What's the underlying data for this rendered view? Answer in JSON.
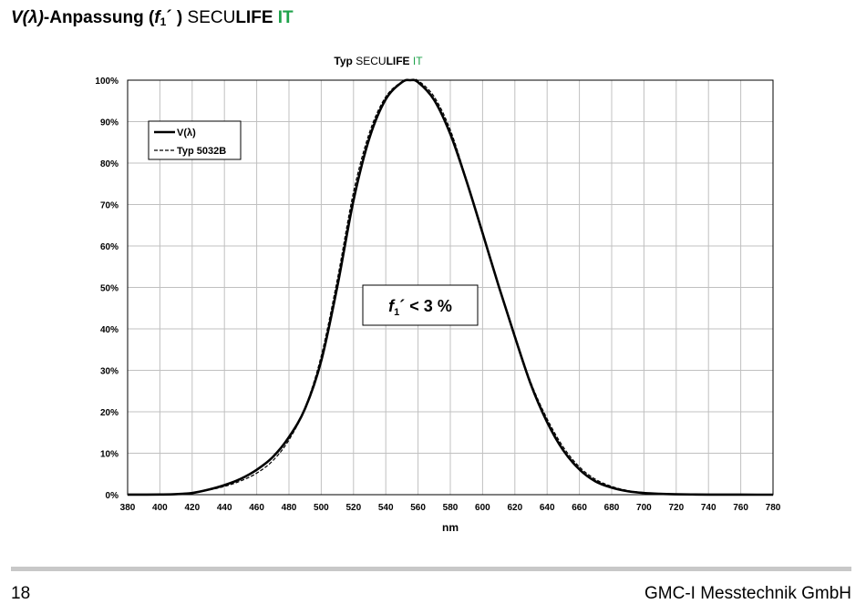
{
  "page": {
    "title_prefix": "V(λ)",
    "title_middle": "-Anpassung (",
    "title_f": "f",
    "title_sub": "1",
    "title_after": "´ )",
    "brand_secu": "SECU",
    "brand_life": "LIFE",
    "brand_it": "IT",
    "page_number": "18",
    "company": "GMC-I Messtechnik GmbH"
  },
  "colors": {
    "brand_green": "#1ea24a",
    "grid": "#c0c0c0",
    "axis": "#000000",
    "divider": "#c8c8c8"
  },
  "chart_data": {
    "type": "line",
    "title_typ": "Typ",
    "title_secu": "SECU",
    "title_life": "LIFE",
    "title_it": "IT",
    "xlabel": "nm",
    "ylabel": "",
    "xlim": [
      380,
      780
    ],
    "ylim": [
      0,
      100
    ],
    "x_ticks": [
      "380",
      "400",
      "420",
      "440",
      "460",
      "480",
      "500",
      "520",
      "540",
      "560",
      "580",
      "600",
      "620",
      "640",
      "660",
      "680",
      "700",
      "720",
      "740",
      "760",
      "780"
    ],
    "y_ticks": [
      "0%",
      "10%",
      "20%",
      "30%",
      "40%",
      "50%",
      "60%",
      "70%",
      "80%",
      "90%",
      "100%"
    ],
    "grid": true,
    "legend_position": "top-left",
    "annotation": {
      "f": "f",
      "sub": "1",
      "text": "´ < 3 %"
    },
    "x": [
      380,
      390,
      400,
      410,
      420,
      430,
      440,
      450,
      460,
      470,
      480,
      490,
      500,
      510,
      520,
      530,
      540,
      550,
      555,
      560,
      570,
      580,
      590,
      600,
      610,
      620,
      630,
      640,
      650,
      660,
      670,
      680,
      690,
      700,
      710,
      720,
      730,
      740,
      750,
      760,
      770,
      780
    ],
    "series": [
      {
        "name": "V(λ)",
        "style": "solid",
        "values": [
          0.004,
          0.012,
          0.04,
          0.12,
          0.4,
          1.2,
          2.3,
          3.8,
          6.0,
          9.1,
          13.9,
          20.8,
          32.3,
          50.3,
          71.0,
          86.2,
          95.4,
          99.5,
          100,
          99.5,
          95.2,
          87.0,
          75.7,
          63.1,
          50.3,
          38.1,
          26.5,
          17.5,
          10.7,
          6.1,
          3.2,
          1.7,
          0.82,
          0.41,
          0.21,
          0.105,
          0.052,
          0.025,
          0.012,
          0.006,
          0.003,
          0.0015
        ]
      },
      {
        "name": "Typ 5032B",
        "style": "dashed",
        "values": [
          0.0,
          0.02,
          0.06,
          0.2,
          0.5,
          1.1,
          2.0,
          3.3,
          5.2,
          8.2,
          13.2,
          21.0,
          33.5,
          52.0,
          73.0,
          87.5,
          96.0,
          99.6,
          100,
          99.9,
          96.0,
          88.0,
          76.0,
          63.5,
          50.5,
          38.5,
          27.0,
          18.3,
          11.5,
          6.7,
          3.7,
          2.0,
          1.0,
          0.5,
          0.25,
          0.12,
          0.06,
          0.03,
          0.015,
          0.007,
          0.003,
          0.0015
        ]
      }
    ]
  }
}
